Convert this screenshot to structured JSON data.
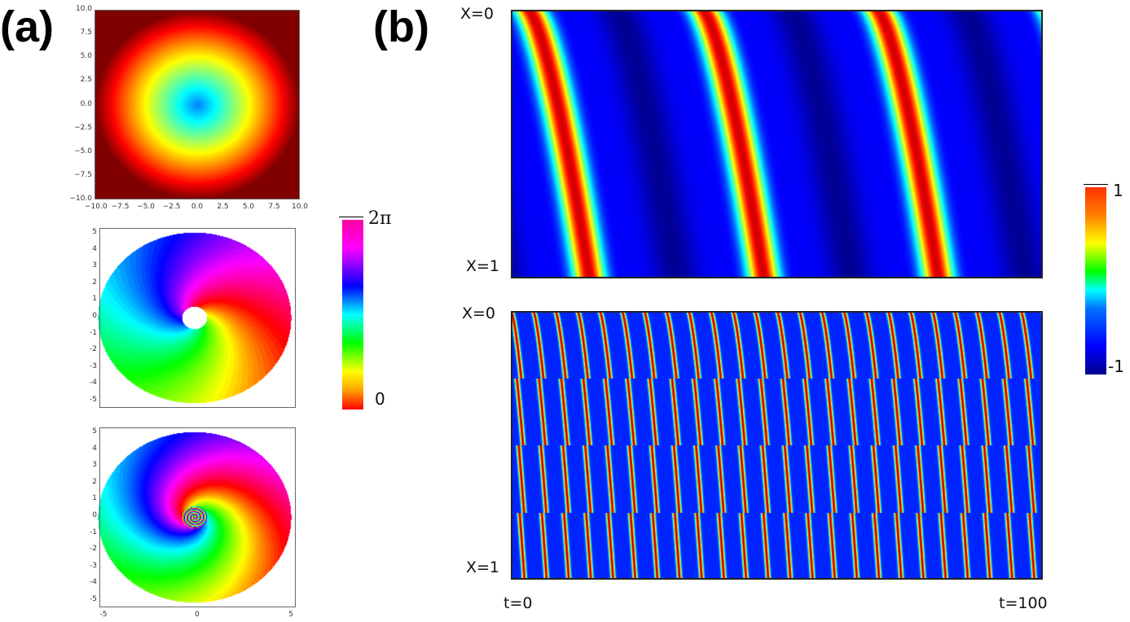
{
  "panel_labels": {
    "a": "(a)",
    "b": "(b)"
  },
  "chart_data": [
    {
      "type": "heatmap",
      "panel": "a-top",
      "colormap": "jet",
      "xlim": [
        -10,
        10
      ],
      "ylim": [
        -10,
        10
      ],
      "xticks": [
        "−10.0",
        "−7.5",
        "−5.0",
        "−2.5",
        "0.0",
        "2.5",
        "5.0",
        "7.5",
        "10.0"
      ],
      "yticks": [
        "10.0",
        "7.5",
        "5.0",
        "2.5",
        "0.0",
        "−2.5",
        "−5.0",
        "−7.5",
        "−10.0"
      ]
    },
    {
      "type": "heatmap",
      "panel": "a-middle",
      "colormap": "hsv phase",
      "yticks": [
        "5",
        "4",
        "3",
        "2",
        "1",
        "0",
        "-1",
        "-2",
        "-3",
        "-4",
        "-5"
      ],
      "spiral_arms": 1,
      "center_hole": true
    },
    {
      "type": "heatmap",
      "panel": "a-bottom",
      "colormap": "hsv phase",
      "yticks": [
        "5",
        "4",
        "3",
        "2",
        "1",
        "0",
        "-1",
        "-2",
        "-3",
        "-4",
        "-5"
      ],
      "xticks": [
        "-5",
        "0",
        "5"
      ],
      "spiral_arms": 1,
      "center_hole": false
    },
    {
      "type": "heatmap",
      "panel": "b-top",
      "colormap": "jet",
      "y_top_label": "X=0",
      "y_bottom_label": "X=1",
      "bands": 3
    },
    {
      "type": "heatmap",
      "panel": "b-bottom",
      "colormap": "jet",
      "y_top_label": "X=0",
      "y_bottom_label": "X=1",
      "x_start_label": "t=0",
      "x_end_label": "t=100",
      "bands": 26
    }
  ],
  "colorbar_a": {
    "max": "2π",
    "min": "0"
  },
  "colorbar_b": {
    "max": "1",
    "min": "-1"
  }
}
